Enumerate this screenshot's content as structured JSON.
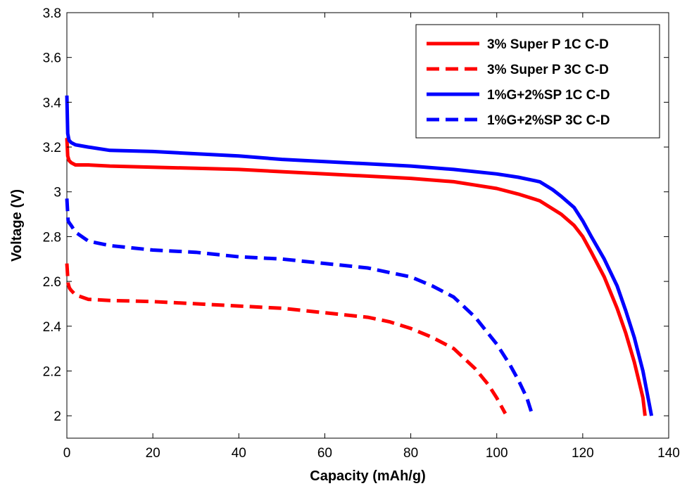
{
  "chart_data": {
    "type": "line",
    "title": "",
    "xlabel": "Capacity (mAh/g)",
    "ylabel": "Voltage (V)",
    "xlim": [
      0,
      140
    ],
    "ylim": [
      1.9,
      3.8
    ],
    "xticks": [
      0,
      20,
      40,
      60,
      80,
      100,
      120,
      140
    ],
    "yticks": [
      2,
      2.2,
      2.4,
      2.6,
      2.8,
      3,
      3.2,
      3.4,
      3.6,
      3.8
    ],
    "xtick_labels": [
      "0",
      "20",
      "40",
      "60",
      "80",
      "100",
      "120",
      "140"
    ],
    "ytick_labels": [
      "2",
      "2.2",
      "2.4",
      "2.6",
      "2.8",
      "3",
      "3.2",
      "3.4",
      "3.6",
      "3.8"
    ],
    "grid": false,
    "legend_position": "top-right",
    "series": [
      {
        "name": "3% Super P 1C C-D",
        "color": "#ff0000",
        "dash": "solid",
        "x": [
          0,
          0.2,
          0.5,
          1,
          2,
          5,
          10,
          20,
          30,
          40,
          50,
          60,
          70,
          80,
          90,
          95,
          100,
          105,
          110,
          115,
          118,
          120,
          122,
          125,
          128,
          130,
          132,
          133,
          134,
          134.5
        ],
        "y": [
          3.24,
          3.16,
          3.14,
          3.13,
          3.12,
          3.12,
          3.115,
          3.11,
          3.105,
          3.1,
          3.09,
          3.08,
          3.07,
          3.06,
          3.045,
          3.03,
          3.015,
          2.99,
          2.96,
          2.9,
          2.85,
          2.8,
          2.73,
          2.62,
          2.48,
          2.37,
          2.24,
          2.16,
          2.08,
          2.0
        ]
      },
      {
        "name": "3% Super P 3C C-D",
        "color": "#ff0000",
        "dash": "dashed",
        "x": [
          0,
          0.3,
          0.6,
          1,
          2,
          5,
          10,
          20,
          30,
          40,
          50,
          60,
          70,
          75,
          80,
          85,
          90,
          95,
          98,
          100,
          102
        ],
        "y": [
          2.68,
          2.59,
          2.57,
          2.56,
          2.54,
          2.52,
          2.515,
          2.51,
          2.5,
          2.49,
          2.48,
          2.46,
          2.44,
          2.42,
          2.39,
          2.35,
          2.3,
          2.21,
          2.14,
          2.08,
          2.01
        ]
      },
      {
        "name": "1%G+2%SP 1C C-D",
        "color": "#0000ff",
        "dash": "solid",
        "x": [
          0,
          0.2,
          0.5,
          1,
          2,
          5,
          10,
          20,
          30,
          40,
          50,
          60,
          70,
          80,
          90,
          100,
          105,
          110,
          113,
          115,
          118,
          120,
          122,
          125,
          128,
          130,
          132,
          134,
          135,
          136
        ],
        "y": [
          3.43,
          3.26,
          3.23,
          3.22,
          3.21,
          3.2,
          3.185,
          3.18,
          3.17,
          3.16,
          3.145,
          3.135,
          3.125,
          3.115,
          3.1,
          3.08,
          3.065,
          3.045,
          3.01,
          2.98,
          2.93,
          2.87,
          2.8,
          2.7,
          2.58,
          2.47,
          2.35,
          2.2,
          2.1,
          2.0
        ]
      },
      {
        "name": "1%G+2%SP 3C C-D",
        "color": "#0000ff",
        "dash": "dashed",
        "x": [
          0,
          0.3,
          0.6,
          1,
          2,
          5,
          10,
          20,
          30,
          40,
          50,
          60,
          70,
          75,
          80,
          85,
          90,
          95,
          100,
          103,
          105,
          107,
          108
        ],
        "y": [
          2.97,
          2.87,
          2.86,
          2.85,
          2.82,
          2.78,
          2.76,
          2.74,
          2.73,
          2.71,
          2.7,
          2.68,
          2.66,
          2.64,
          2.62,
          2.58,
          2.53,
          2.44,
          2.32,
          2.23,
          2.16,
          2.08,
          2.02
        ]
      }
    ]
  }
}
